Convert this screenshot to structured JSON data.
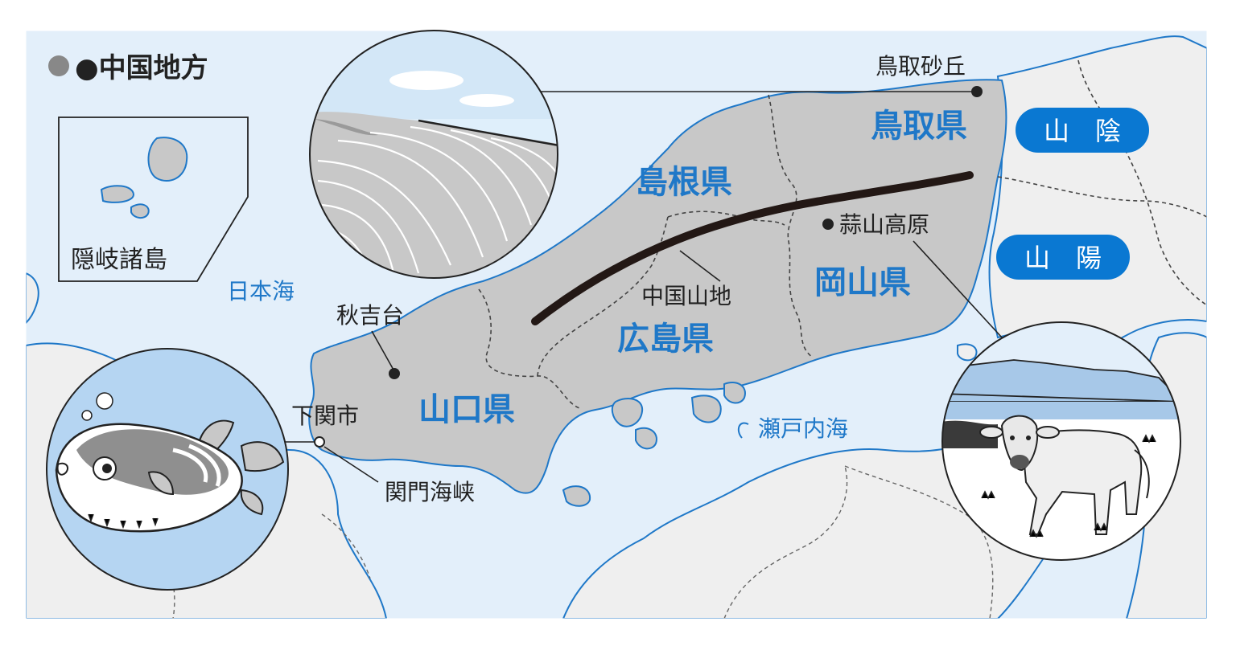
{
  "title": "●中国地方",
  "inset_label": "隠岐諸島",
  "seas": {
    "japan_sea": "日本海",
    "inland_sea": "瀬戸内海"
  },
  "regions": {
    "sanin": "山　陰",
    "sanyo": "山　陽"
  },
  "prefectures": {
    "tottori": "鳥取県",
    "shimane": "島根県",
    "okayama": "岡山県",
    "hiroshima": "広島県",
    "yamaguchi": "山口県"
  },
  "places": {
    "tottori_dunes": "鳥取砂丘",
    "hiruzen": "蒜山高原",
    "chugoku_mountains": "中国山地",
    "akiyoshidai": "秋吉台",
    "shimonoseki": "下関市",
    "kanmon_strait": "関門海峡"
  },
  "colors": {
    "sea": "#e3effa",
    "land": "#efefef",
    "chugoku": "#c8c8c8",
    "coast": "#1f78c8",
    "label_blue": "#1f78c8",
    "badge_blue": "#0a78d2",
    "mountain_line": "#231815"
  },
  "icons": {
    "dunes_illustration": "sand-dunes-illustration",
    "cow_illustration": "jersey-cow-illustration",
    "pufferfish_illustration": "pufferfish-illustration"
  }
}
